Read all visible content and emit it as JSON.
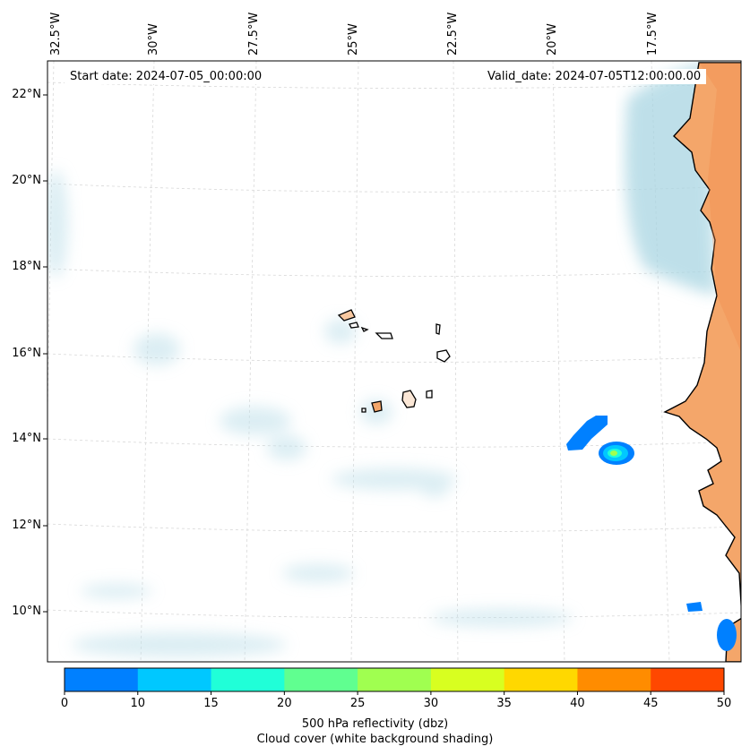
{
  "map": {
    "start_date_text": "Start date: 2024-07-05_00:00:00",
    "valid_date_text": "Valid_date: 2024-07-05T12:00:00.00",
    "lon_labels": [
      "32.5°W",
      "30°W",
      "27.5°W",
      "25°W",
      "22.5°W",
      "20°W",
      "17.5°W"
    ],
    "lat_labels": [
      "22°N",
      "20°N",
      "18°N",
      "16°N",
      "14°N",
      "12°N",
      "10°N"
    ],
    "land_color": "#f4a66a",
    "cloud_color": "#bfe0ea",
    "reflectivity_cells": [
      {
        "name": "reflectivity-cell-west",
        "dbz": 10
      },
      {
        "name": "reflectivity-cell-east",
        "dbz": 20
      },
      {
        "name": "reflectivity-cell-south",
        "dbz": 10
      }
    ]
  },
  "colorbar": {
    "colors": [
      "#0080ff",
      "#00c8ff",
      "#20ffd8",
      "#60ff90",
      "#a0ff50",
      "#d8ff20",
      "#ffd800",
      "#ff8c00",
      "#ff4800"
    ],
    "ticks": [
      "0",
      "10",
      "15",
      "20",
      "25",
      "30",
      "35",
      "40",
      "45",
      "50"
    ],
    "label_line1": "500 hPa reflectivity (dbz)",
    "label_line2": "Cloud cover (white background shading)"
  }
}
